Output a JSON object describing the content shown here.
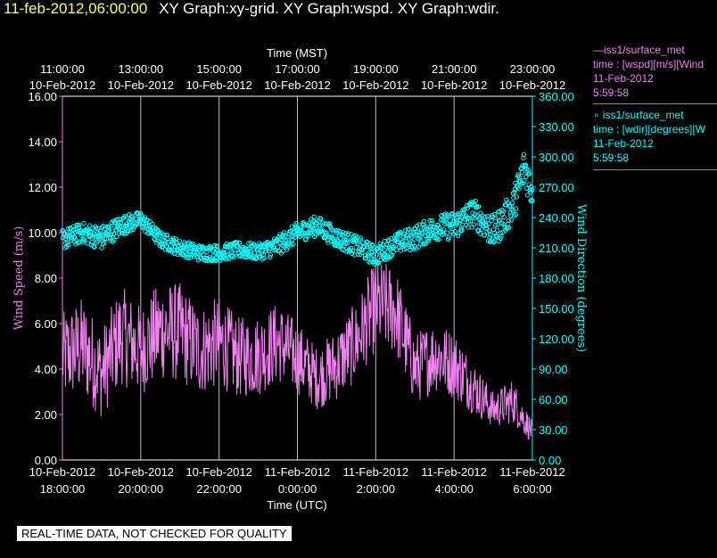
{
  "header": {
    "timestamp": "11-feb-2012,06:00:00",
    "graphs": "XY Graph:xy-grid.  XY Graph:wspd.  XY Graph:wdir."
  },
  "legend": [
    {
      "line1": "—iss1/surface_met",
      "line2": "time : [wspd][m/s][Wind",
      "line3": "11-Feb-2012",
      "line4": "5:59:58",
      "color": "#ee82ee"
    },
    {
      "line1": "∘ iss1/surface_met",
      "line2": "time : [wdir][degrees][W",
      "line3": "11-Feb-2012",
      "line4": "5:59:58",
      "color": "#00ffff"
    }
  ],
  "disclaimer": "REAL-TIME DATA, NOT CHECKED FOR QUALITY",
  "chart_data": {
    "type": "line",
    "top_axis": {
      "label": "Time (MST)",
      "ticks": [
        {
          "t1": "11:00:00",
          "t2": "10-Feb-2012"
        },
        {
          "t1": "13:00:00",
          "t2": "10-Feb-2012"
        },
        {
          "t1": "15:00:00",
          "t2": "10-Feb-2012"
        },
        {
          "t1": "17:00:00",
          "t2": "10-Feb-2012"
        },
        {
          "t1": "19:00:00",
          "t2": "10-Feb-2012"
        },
        {
          "t1": "21:00:00",
          "t2": "10-Feb-2012"
        },
        {
          "t1": "23:00:00",
          "t2": "10-Feb-2012"
        }
      ]
    },
    "bottom_axis": {
      "label": "Time (UTC)",
      "ticks": [
        {
          "t1": "10-Feb-2012",
          "t2": "18:00:00"
        },
        {
          "t1": "10-Feb-2012",
          "t2": "20:00:00"
        },
        {
          "t1": "10-Feb-2012",
          "t2": "22:00:00"
        },
        {
          "t1": "11-Feb-2012",
          "t2": "0:00:00"
        },
        {
          "t1": "11-Feb-2012",
          "t2": "2:00:00"
        },
        {
          "t1": "11-Feb-2012",
          "t2": "4:00:00"
        },
        {
          "t1": "11-Feb-2012",
          "t2": "6:00:00"
        }
      ]
    },
    "x_range_hours_utc": [
      18,
      30
    ],
    "left_axis": {
      "label": "Wind Speed (m/s)",
      "range": [
        0,
        16
      ],
      "ticks": [
        "0.00",
        "2.00",
        "4.00",
        "6.00",
        "8.00",
        "10.00",
        "12.00",
        "14.00",
        "16.00"
      ]
    },
    "right_axis": {
      "label": "Wind Direction (degrees)",
      "range": [
        0,
        360
      ],
      "ticks": [
        "0.00",
        "30.00",
        "60.00",
        "90.00",
        "120.00",
        "150.00",
        "180.00",
        "210.00",
        "240.00",
        "270.00",
        "300.00",
        "330.00",
        "360.00"
      ]
    },
    "grid": "vertical",
    "series": [
      {
        "name": "iss1/surface_met time : [wspd][m/s]",
        "axis": "left",
        "color": "#ee82ee",
        "style": "line",
        "x_hours_utc": [
          18.0,
          18.5,
          19.0,
          19.5,
          20.0,
          20.5,
          21.0,
          21.5,
          22.0,
          22.5,
          23.0,
          23.5,
          24.0,
          24.5,
          25.0,
          25.5,
          26.0,
          26.5,
          27.0,
          27.5,
          28.0,
          28.5,
          29.0,
          29.5,
          30.0
        ],
        "values": [
          4.5,
          5.0,
          3.8,
          5.5,
          4.8,
          5.7,
          5.6,
          4.8,
          5.2,
          4.5,
          4.6,
          5.2,
          4.5,
          3.6,
          4.2,
          5.2,
          6.8,
          6.6,
          4.0,
          4.6,
          4.2,
          3.2,
          2.2,
          2.6,
          1.2
        ],
        "spread": [
          2.0,
          2.2,
          2.0,
          2.2,
          2.0,
          2.2,
          2.2,
          2.0,
          2.0,
          1.8,
          1.8,
          1.8,
          1.6,
          1.4,
          1.6,
          1.8,
          2.0,
          2.0,
          1.6,
          1.6,
          1.5,
          1.2,
          0.8,
          1.0,
          0.5
        ]
      },
      {
        "name": "iss1/surface_met time : [wdir][degrees]",
        "axis": "right",
        "color": "#00ffff",
        "style": "markers",
        "x_hours_utc": [
          18.0,
          18.5,
          19.0,
          19.5,
          20.0,
          20.5,
          21.0,
          21.5,
          22.0,
          22.5,
          23.0,
          23.5,
          24.0,
          24.5,
          25.0,
          25.5,
          26.0,
          26.5,
          27.0,
          27.5,
          28.0,
          28.5,
          29.0,
          29.5,
          29.8,
          30.0
        ],
        "values": [
          218,
          225,
          220,
          232,
          238,
          218,
          210,
          205,
          205,
          208,
          206,
          212,
          225,
          232,
          220,
          212,
          202,
          214,
          220,
          230,
          232,
          245,
          225,
          250,
          290,
          265
        ],
        "spread": [
          10,
          10,
          12,
          10,
          8,
          8,
          8,
          8,
          8,
          8,
          8,
          10,
          10,
          10,
          10,
          10,
          10,
          10,
          12,
          12,
          14,
          14,
          16,
          16,
          20,
          16
        ]
      }
    ]
  }
}
